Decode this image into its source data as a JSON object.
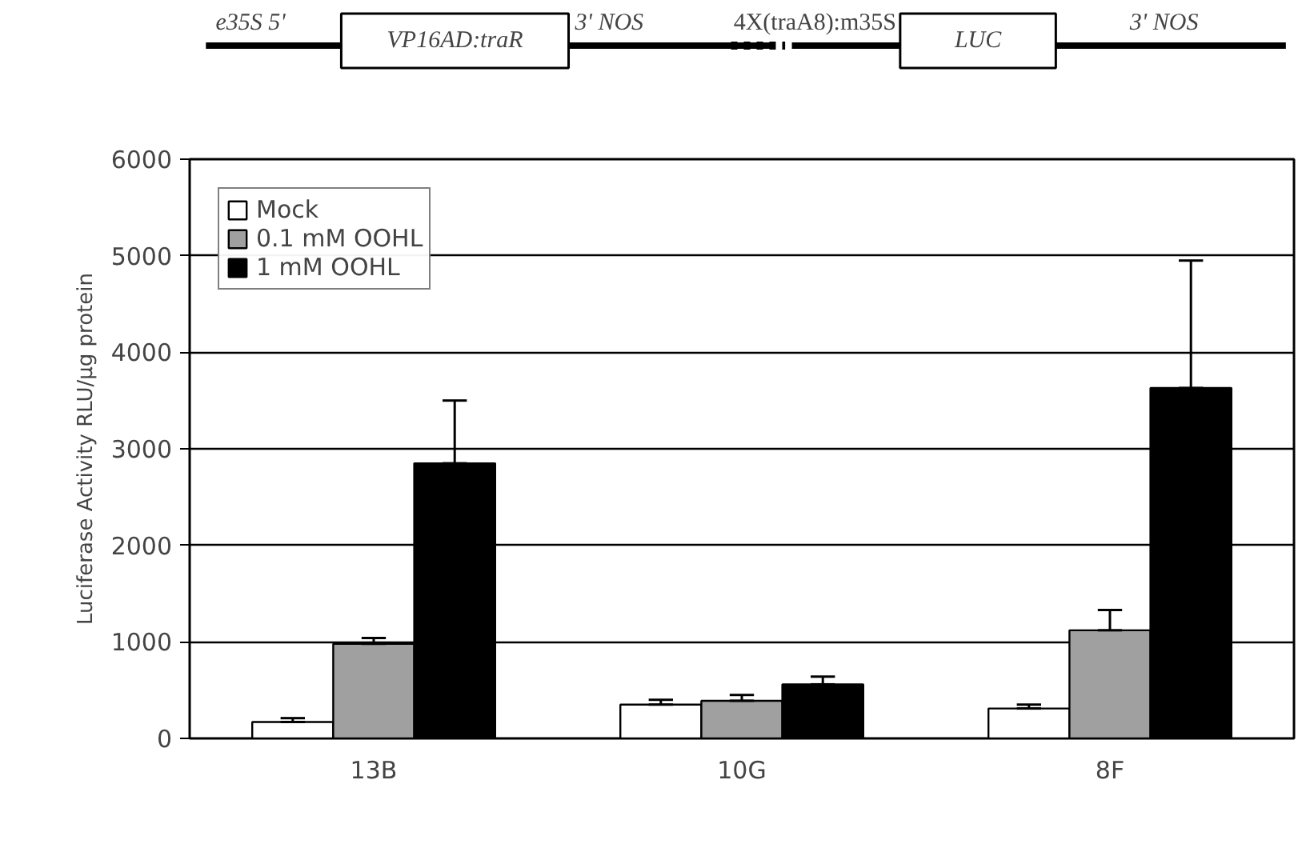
{
  "chart_data": {
    "type": "bar",
    "ylabel": "Luciferase Activity RLU/µg protein",
    "categories": [
      "13B",
      "10G",
      "8F"
    ],
    "series": [
      {
        "name": "Mock",
        "color": "#ffffff",
        "values": [
          170,
          350,
          310
        ],
        "errors": [
          [
            170,
            210
          ],
          [
            350,
            400
          ],
          [
            310,
            350
          ]
        ]
      },
      {
        "name": "0.1 mM OOHL",
        "color": "#a0a0a0",
        "values": [
          980,
          390,
          1120
        ],
        "errors": [
          [
            980,
            1040
          ],
          [
            390,
            450
          ],
          [
            1120,
            1330
          ]
        ]
      },
      {
        "name": "1 mM OOHL",
        "color": "#000000",
        "values": [
          2850,
          560,
          3630
        ],
        "errors": [
          [
            2850,
            3500
          ],
          [
            560,
            640
          ],
          [
            3630,
            4950
          ]
        ]
      }
    ],
    "ylim": [
      0,
      6000
    ],
    "yticks": [
      0,
      1000,
      2000,
      3000,
      4000,
      5000,
      6000
    ],
    "grid": "y",
    "legend": "top left",
    "annotations": [
      "e35S 5'",
      "VP16AD:traR",
      "3' NOS",
      "4X(traA8):m35S",
      "LUC",
      "3' NOS"
    ]
  }
}
